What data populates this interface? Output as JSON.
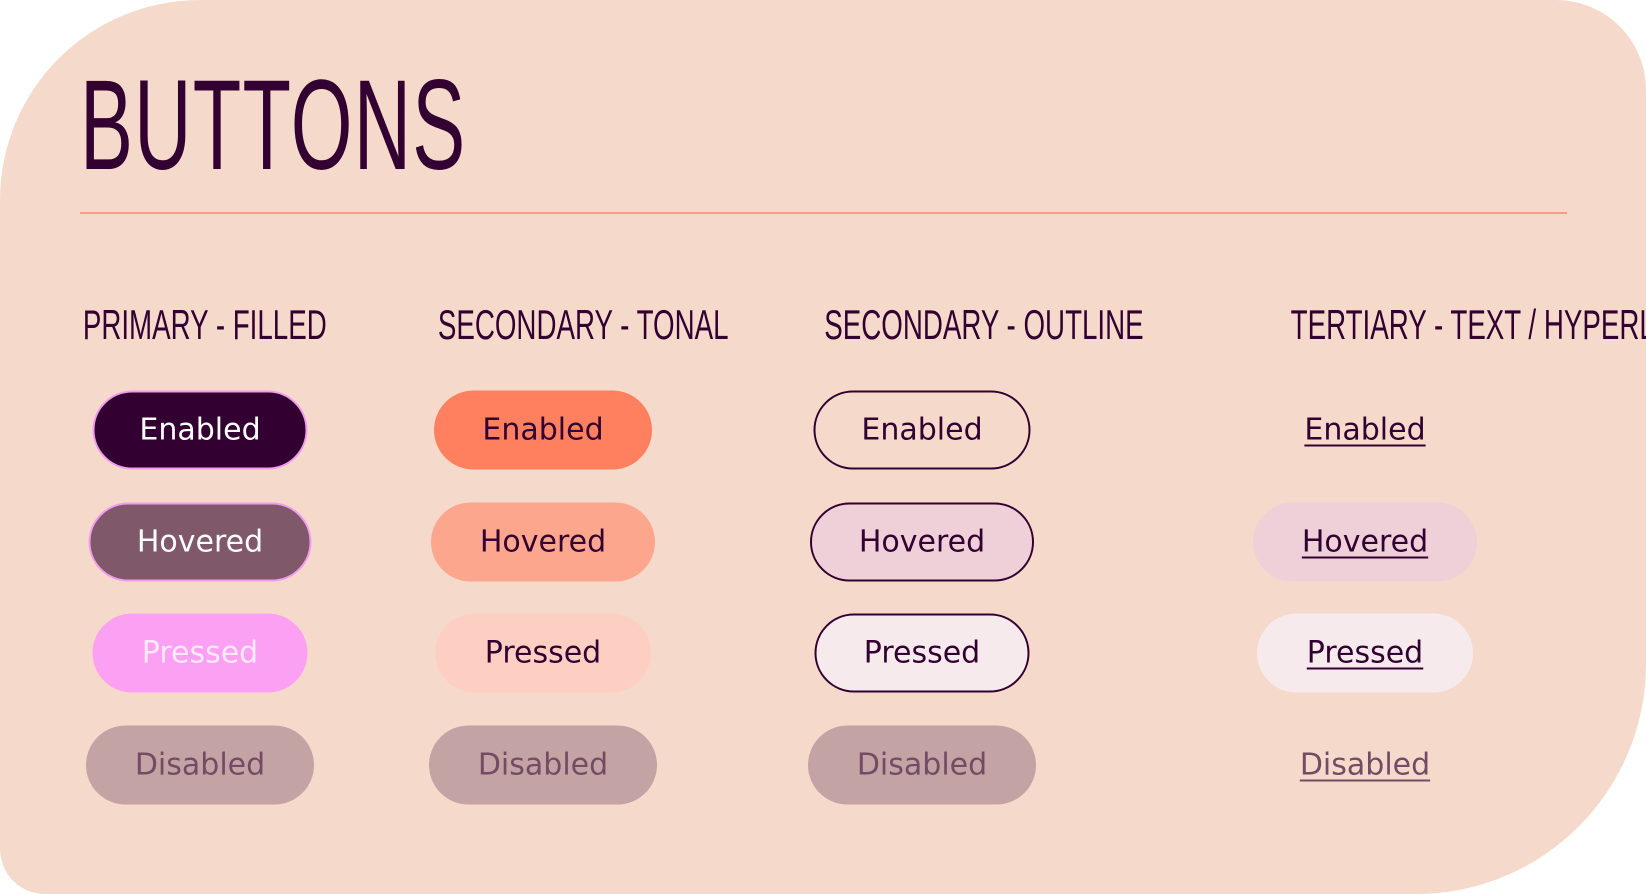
{
  "title": "BUTTONS",
  "columns": [
    {
      "header": "PRIMARY - FILLED",
      "buttons": [
        "Enabled",
        "Hovered",
        "Pressed",
        "Disabled"
      ]
    },
    {
      "header": "SECONDARY - TONAL",
      "buttons": [
        "Enabled",
        "Hovered",
        "Pressed",
        "Disabled"
      ]
    },
    {
      "header": "SECONDARY - OUTLINE",
      "buttons": [
        "Enabled",
        "Hovered",
        "Pressed",
        "Disabled"
      ]
    },
    {
      "header": "TERTIARY - TEXT / HYPERLINK",
      "buttons": [
        "Enabled",
        "Hovered",
        "Pressed",
        "Disabled"
      ]
    }
  ],
  "colors": {
    "background": "#f5dacb",
    "text_dark": "#320031",
    "primary_enabled": "#320031",
    "primary_hovered": "#7f5869",
    "primary_pressed": "#fca0f4",
    "primary_border": "#f39bf0",
    "tonal_enabled": "#ff805e",
    "tonal_hovered": "#fca78d",
    "tonal_pressed": "#fdcfc3",
    "outline_hovered": "#efd0d8",
    "outline_pressed": "#f7eaed",
    "disabled_fill": "#c4a3a4",
    "disabled_text": "#744b64",
    "accent_rule": "#f79a86"
  }
}
